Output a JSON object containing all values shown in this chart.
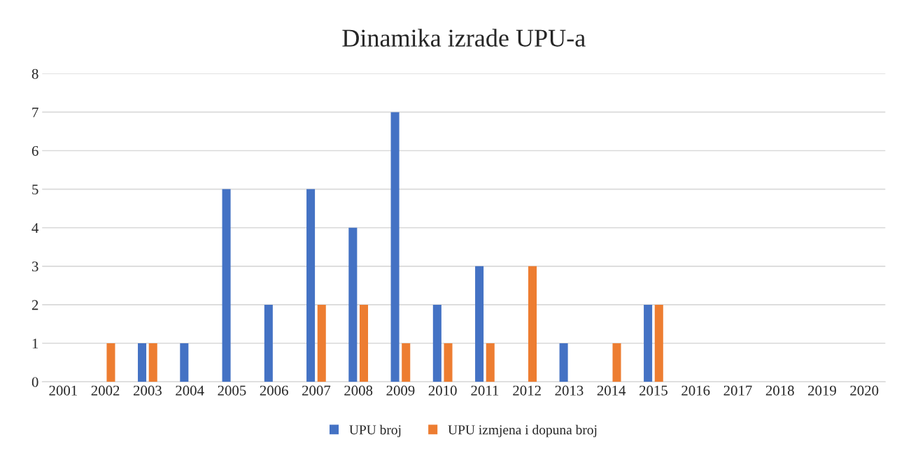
{
  "chart_data": {
    "type": "bar",
    "title": "Dinamika izrade UPU-a",
    "categories": [
      "2001",
      "2002",
      "2003",
      "2004",
      "2005",
      "2006",
      "2007",
      "2008",
      "2009",
      "2010",
      "2011",
      "2012",
      "2013",
      "2014",
      "2015",
      "2016",
      "2017",
      "2018",
      "2019",
      "2020"
    ],
    "series": [
      {
        "name": "UPU broj",
        "color": "#4472c4",
        "values": [
          0,
          0,
          1,
          1,
          5,
          2,
          5,
          4,
          7,
          2,
          3,
          0,
          1,
          0,
          2,
          0,
          0,
          0,
          0,
          0
        ]
      },
      {
        "name": "UPU izmjena i dopuna broj",
        "color": "#ed7d31",
        "values": [
          0,
          1,
          1,
          0,
          0,
          0,
          2,
          2,
          1,
          1,
          1,
          3,
          0,
          1,
          2,
          0,
          0,
          0,
          0,
          0
        ]
      }
    ],
    "ylim": [
      0,
      8
    ],
    "yticks": [
      0,
      1,
      2,
      3,
      4,
      5,
      6,
      7,
      8
    ],
    "grid": "y",
    "legend": "bottom"
  }
}
